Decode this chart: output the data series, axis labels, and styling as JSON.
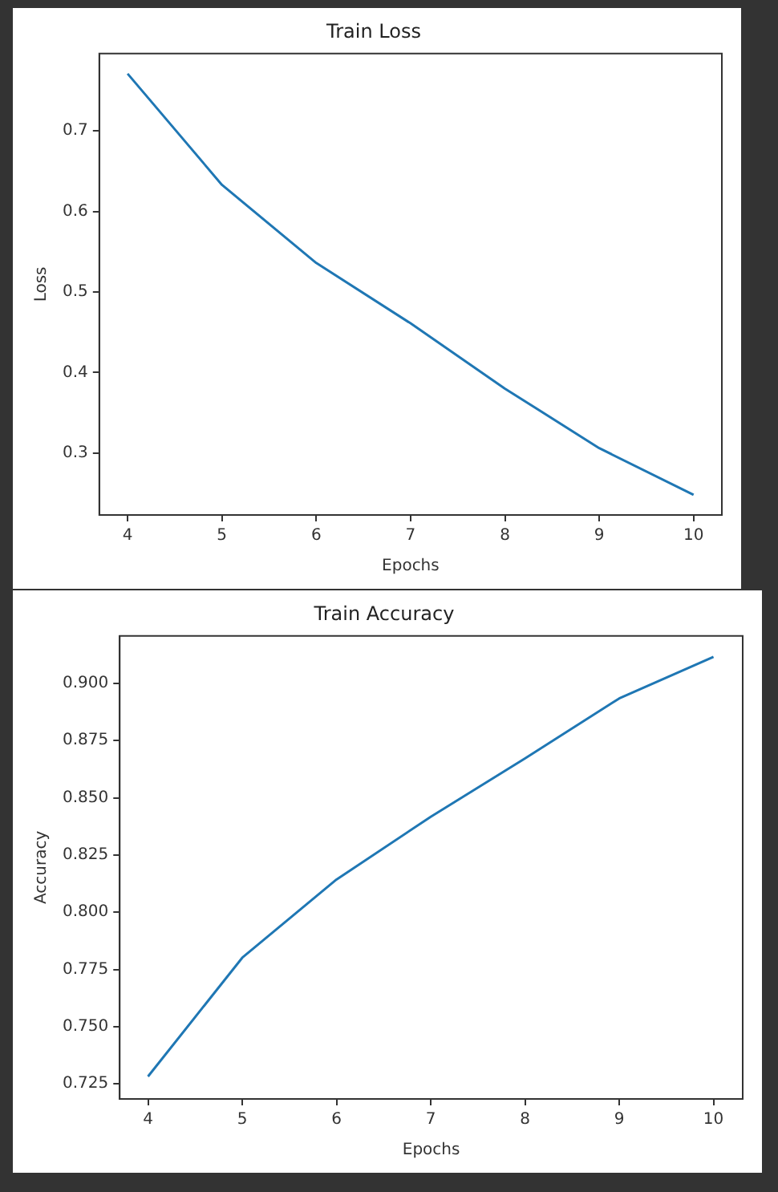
{
  "chart_data": [
    {
      "type": "line",
      "title": "Train Loss",
      "xlabel": "Epochs",
      "ylabel": "Loss",
      "color": "#1f77b4",
      "x": [
        4,
        5,
        6,
        7,
        8,
        9,
        10
      ],
      "values": [
        0.771,
        0.633,
        0.536,
        0.461,
        0.38,
        0.306,
        0.248
      ],
      "xlim": [
        3.7,
        10.3
      ],
      "xticks": [
        4,
        5,
        6,
        7,
        8,
        9,
        10
      ],
      "ylim": [
        0.223,
        0.796
      ],
      "yticks": [
        0.3,
        0.4,
        0.5,
        0.6,
        0.7
      ]
    },
    {
      "type": "line",
      "title": "Train Accuracy",
      "xlabel": "Epochs",
      "ylabel": "Accuracy",
      "color": "#1f77b4",
      "x": [
        4,
        5,
        6,
        7,
        8,
        9,
        10
      ],
      "values": [
        0.7282,
        0.7801,
        0.8143,
        0.8417,
        0.8672,
        0.8934,
        0.9116
      ],
      "xlim": [
        3.7,
        10.31
      ],
      "xticks": [
        4,
        5,
        6,
        7,
        8,
        9,
        10
      ],
      "ylim": [
        0.7184,
        0.9207
      ],
      "yticks": [
        {
          "value": 0.725,
          "label": "0.725"
        },
        {
          "value": 0.75,
          "label": "0.750"
        },
        {
          "value": 0.775,
          "label": "0.775"
        },
        {
          "value": 0.8,
          "label": "0.800"
        },
        {
          "value": 0.825,
          "label": "0.825"
        },
        {
          "value": 0.85,
          "label": "0.850"
        },
        {
          "value": 0.875,
          "label": "0.875"
        },
        {
          "value": 0.9,
          "label": "0.900"
        }
      ]
    }
  ]
}
